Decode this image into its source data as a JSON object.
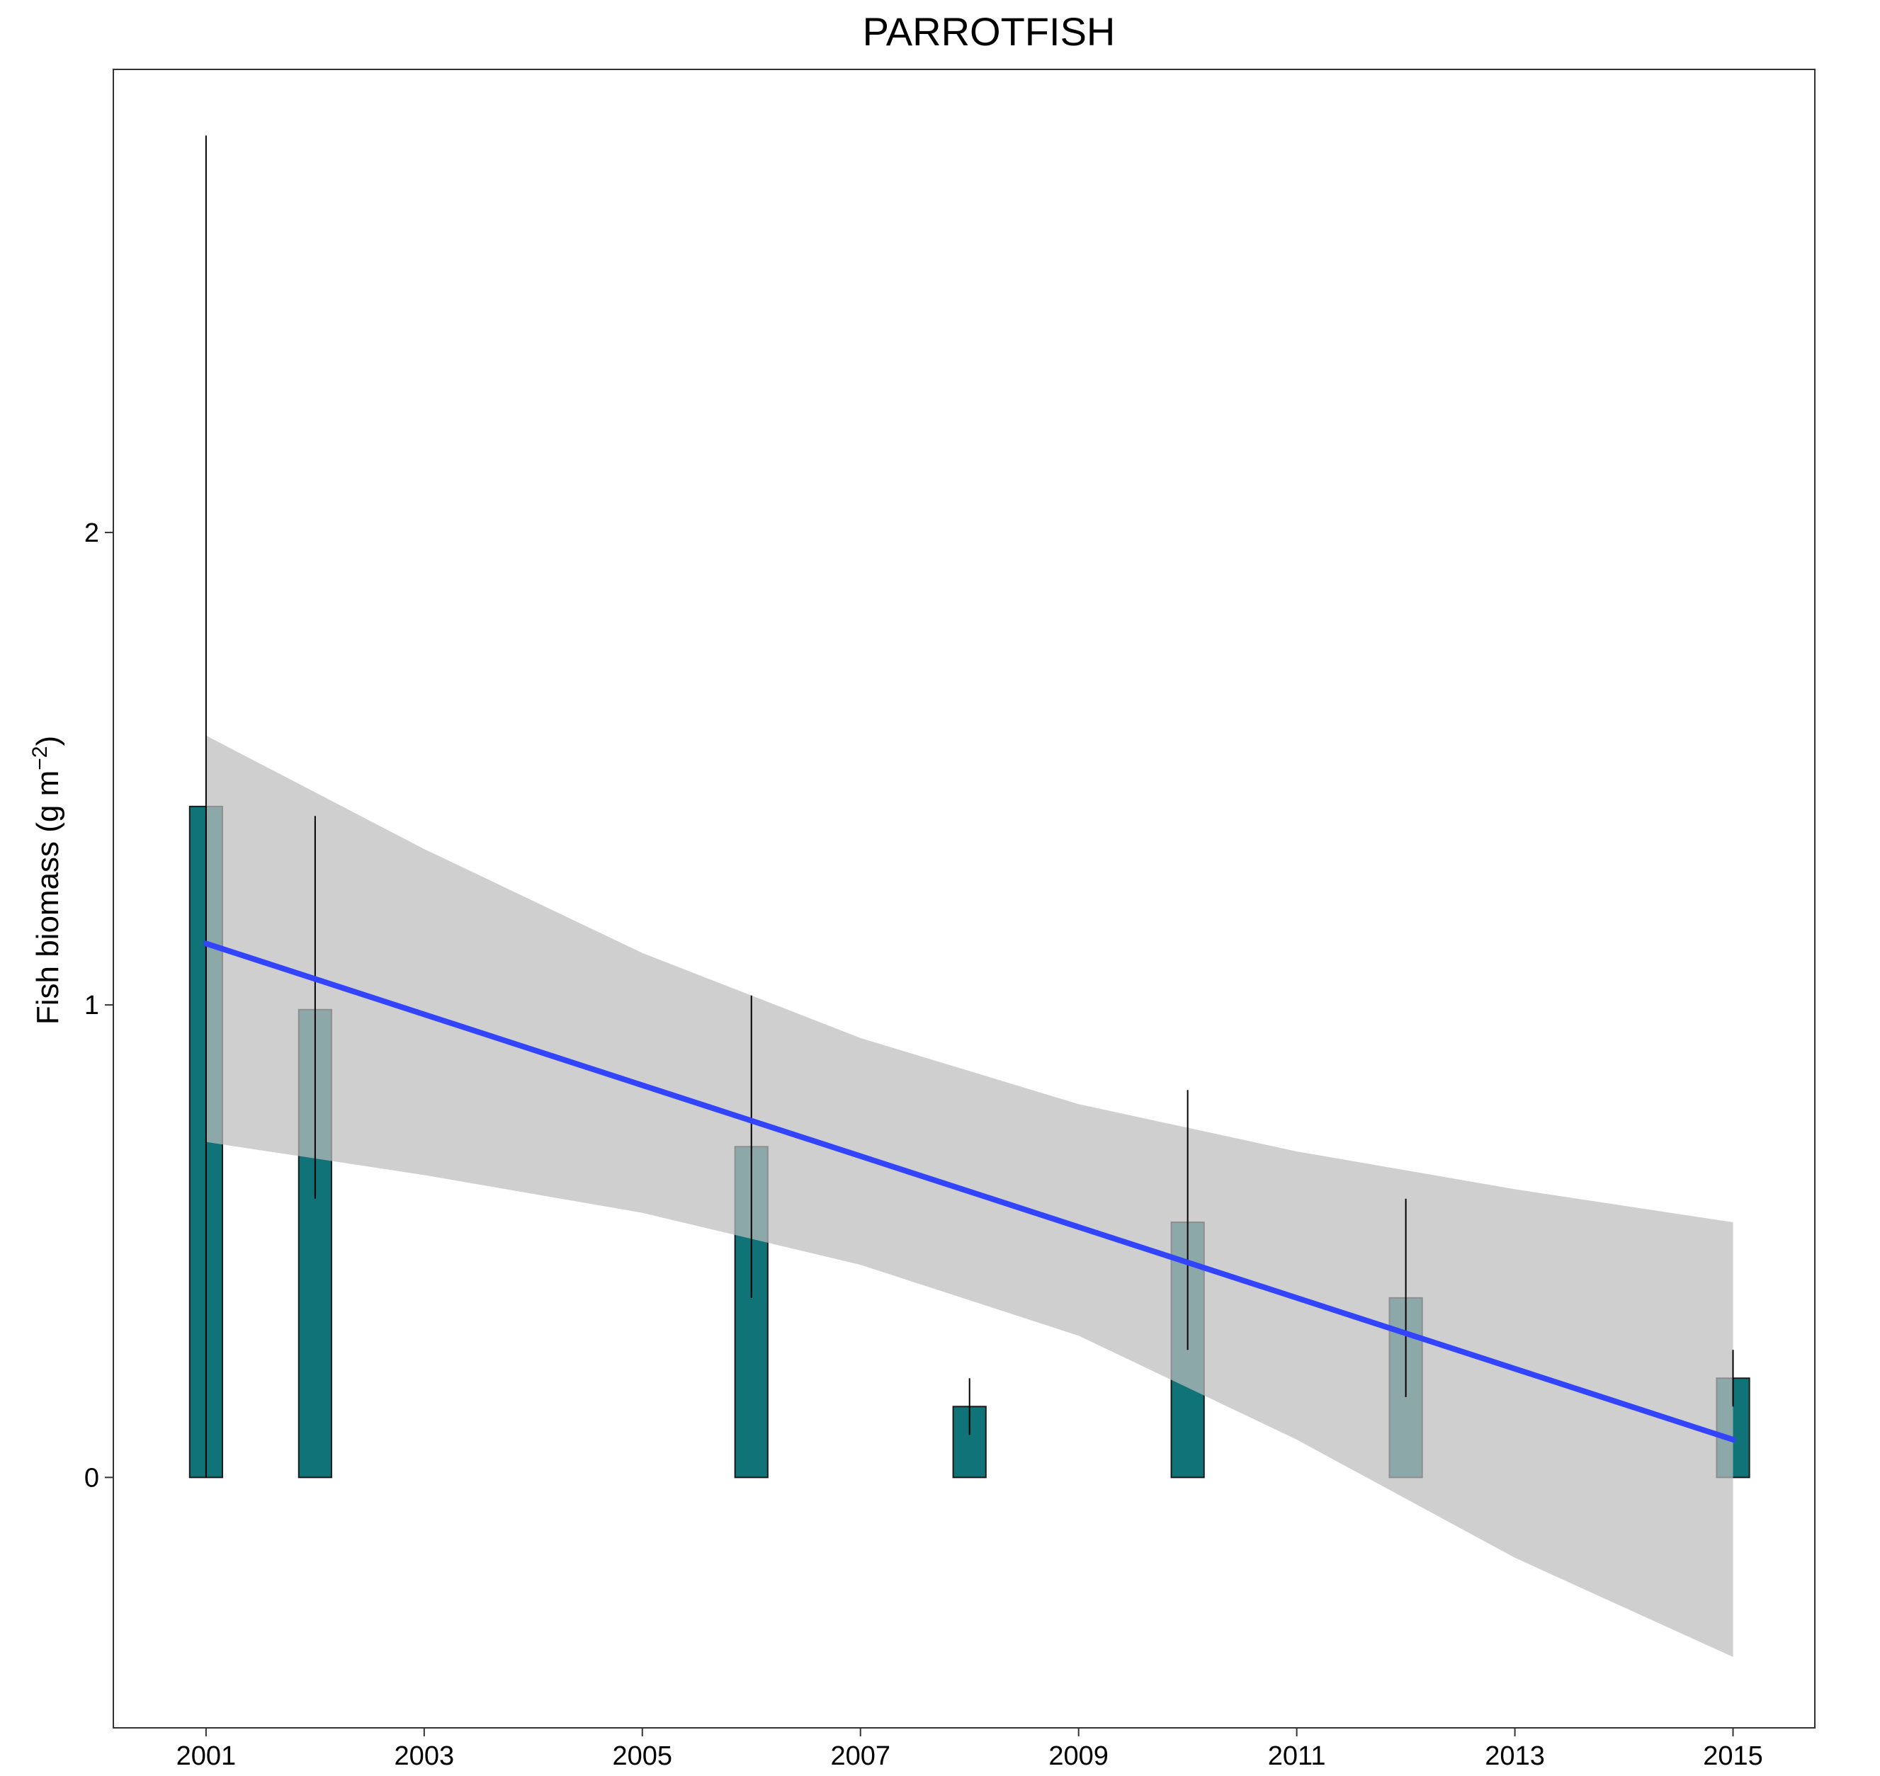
{
  "chart_data": {
    "type": "bar",
    "title": "PARROTFISH",
    "xlabel": "",
    "ylabel": "Fish biomass (g m",
    "ylabel_superscript": "−2",
    "ylabel_close": ")",
    "xlim": [
      2000.15,
      2015.75
    ],
    "ylim": [
      -0.53,
      2.98
    ],
    "x_ticks": [
      2001,
      2003,
      2005,
      2007,
      2009,
      2011,
      2013,
      2015
    ],
    "x_tick_labels": [
      "2001",
      "2003",
      "2005",
      "2007",
      "2009",
      "2011",
      "2013",
      "2015"
    ],
    "y_ticks": [
      0,
      1,
      2
    ],
    "y_tick_labels": [
      "0",
      "1",
      "2"
    ],
    "grid": false,
    "legend": "none",
    "bar_width_years": 0.3,
    "bars": [
      {
        "x": 2001,
        "value": 1.42,
        "err_low": 0.0,
        "err_high": 2.84
      },
      {
        "x": 2002,
        "value": 0.99,
        "err_low": 0.59,
        "err_high": 1.4
      },
      {
        "x": 2006,
        "value": 0.7,
        "err_low": 0.38,
        "err_high": 1.02
      },
      {
        "x": 2008,
        "value": 0.15,
        "err_low": 0.09,
        "err_high": 0.21
      },
      {
        "x": 2010,
        "value": 0.54,
        "err_low": 0.27,
        "err_high": 0.82
      },
      {
        "x": 2012,
        "value": 0.38,
        "err_low": 0.17,
        "err_high": 0.59
      },
      {
        "x": 2015,
        "value": 0.21,
        "err_low": 0.15,
        "err_high": 0.27
      }
    ],
    "trend": {
      "type": "linear",
      "x": [
        2001,
        2015
      ],
      "y": [
        1.13,
        0.08
      ],
      "confidence_band": {
        "x": [
          2001,
          2003,
          2005,
          2007,
          2009,
          2011,
          2013,
          2015
        ],
        "lower": [
          0.71,
          0.64,
          0.56,
          0.45,
          0.3,
          0.08,
          -0.17,
          -0.38
        ],
        "upper": [
          1.57,
          1.33,
          1.11,
          0.93,
          0.79,
          0.69,
          0.61,
          0.54
        ]
      }
    },
    "colors": {
      "bar_fill": "#0f7377",
      "bar_edge": "#1a1a1a",
      "trend_line": "#3344ff",
      "band": "#bdbdbd",
      "band_opacity": 0.72,
      "error_bar": "#000000",
      "panel_border": "#333333"
    }
  }
}
